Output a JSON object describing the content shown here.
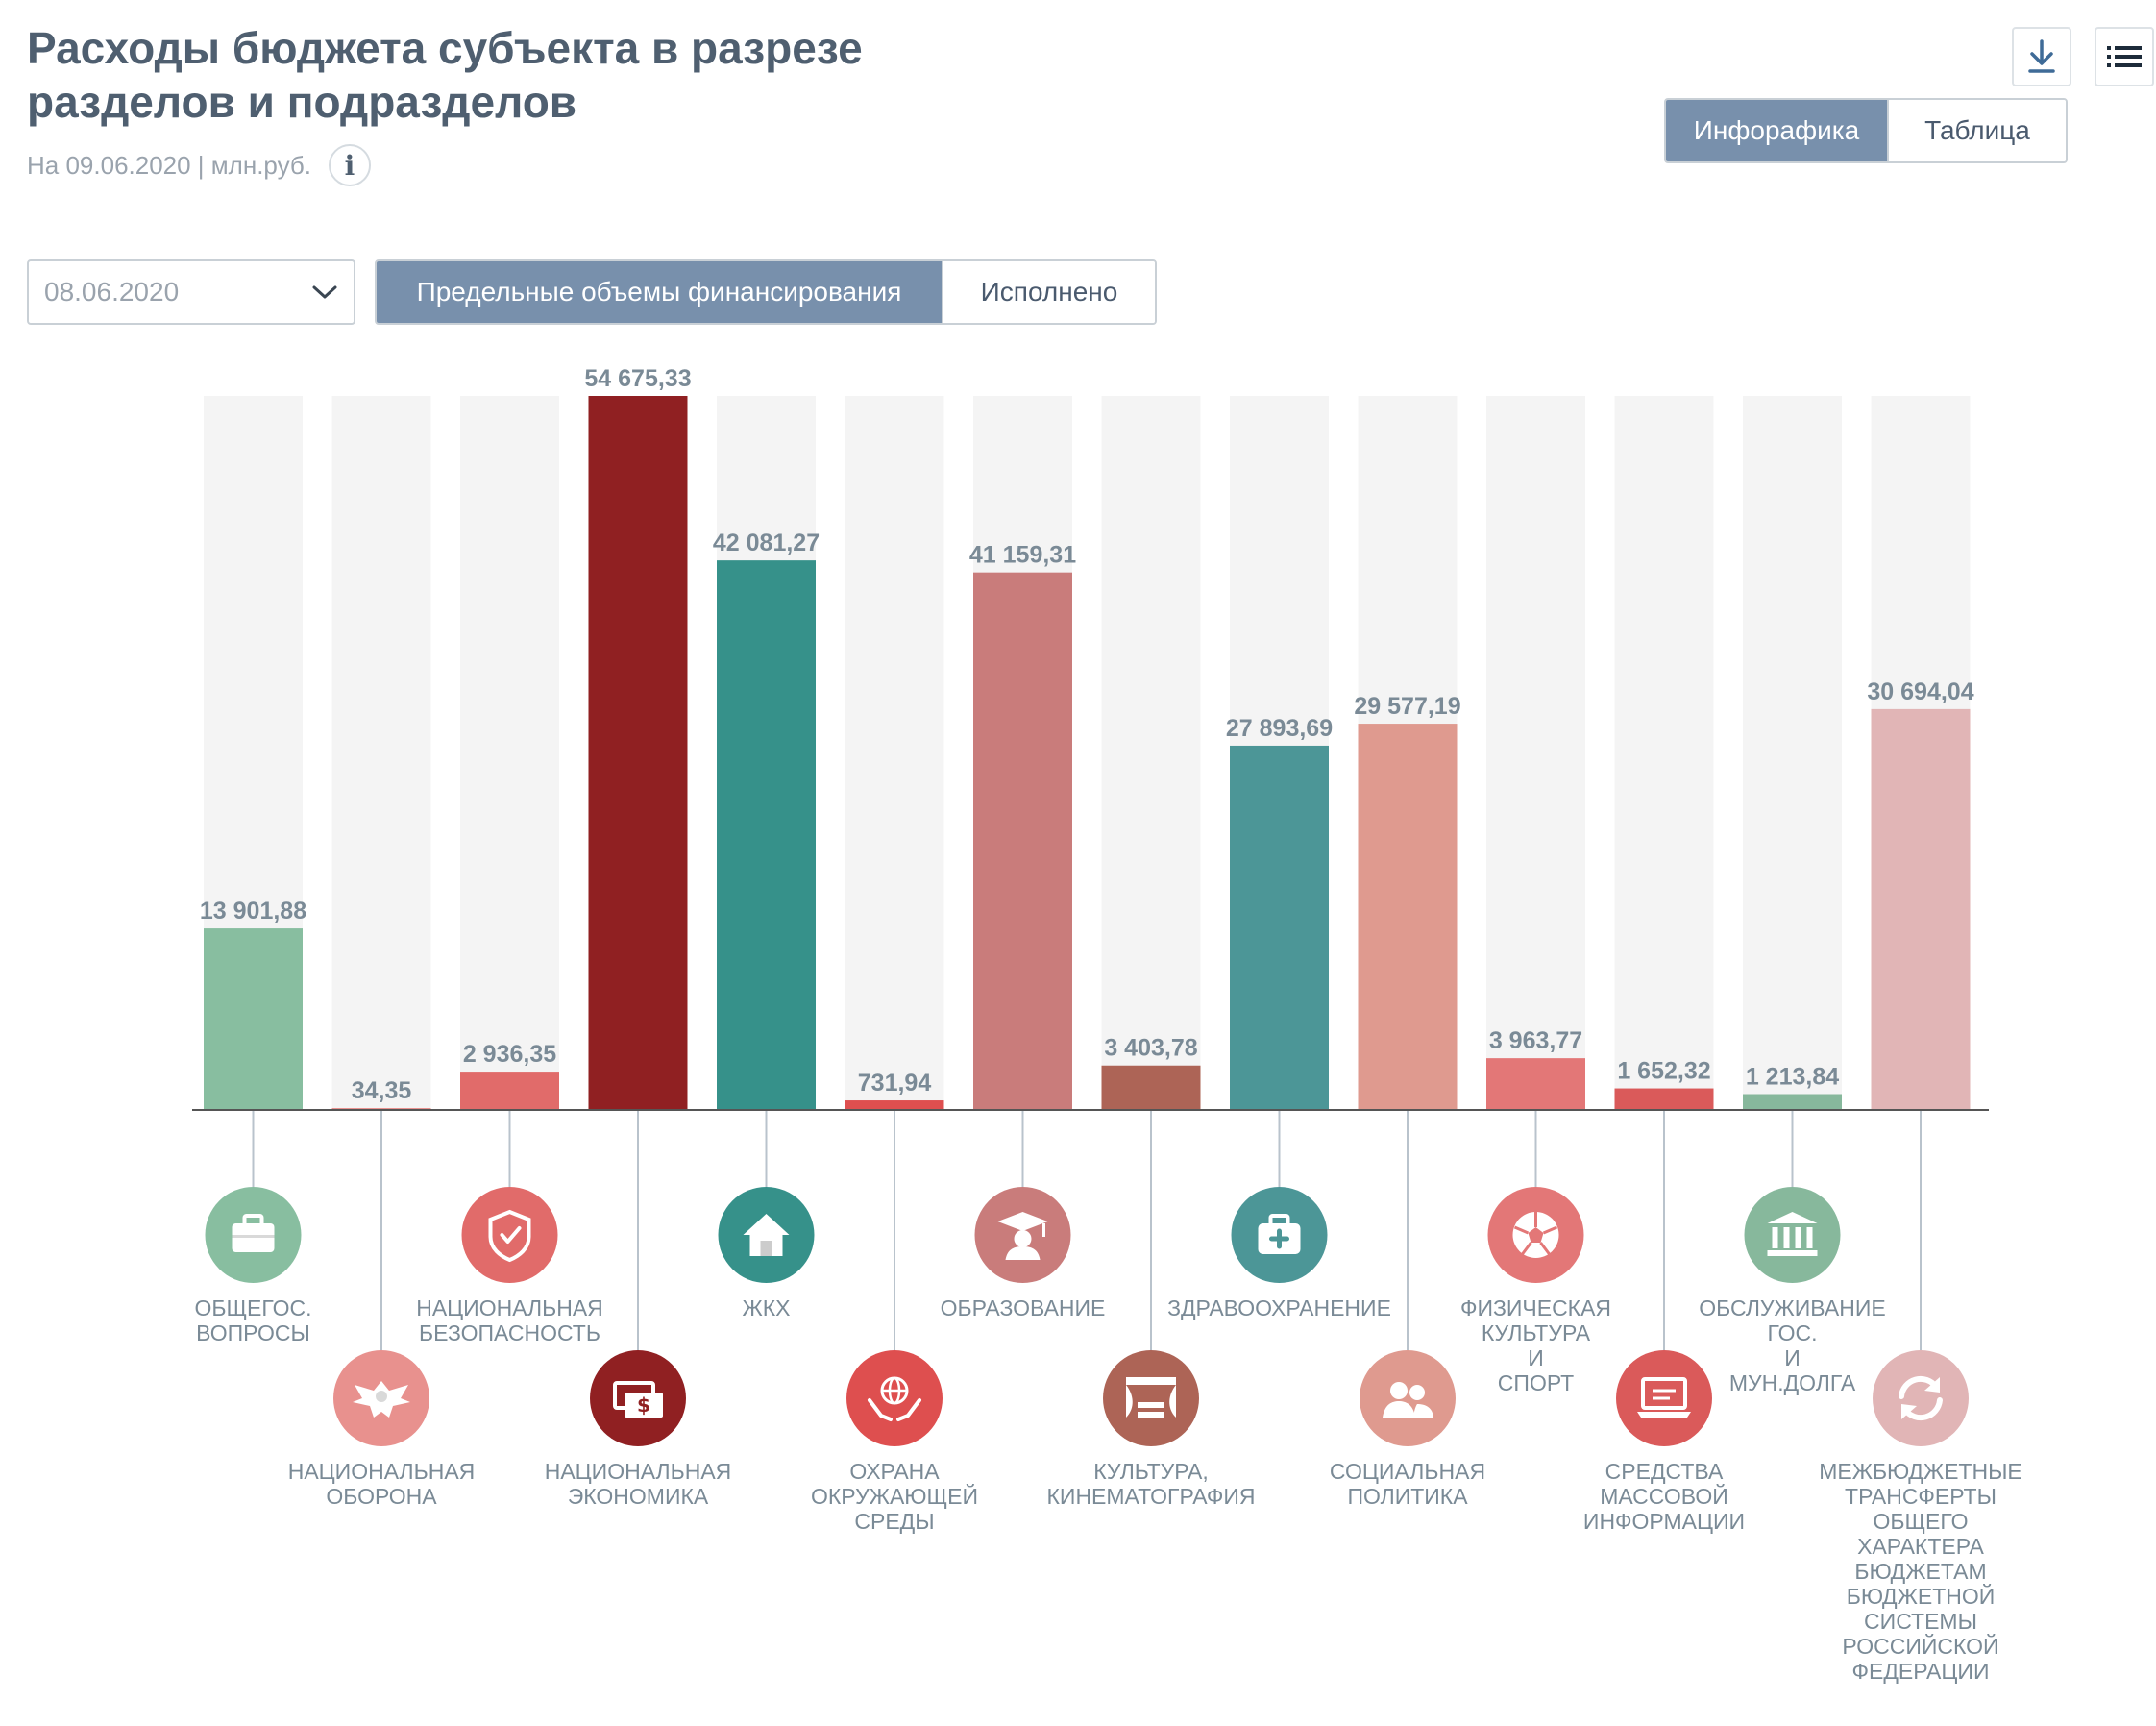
{
  "header": {
    "title_line1": "Расходы бюджета субъекта в разрезе",
    "title_line2": "разделов и подразделов",
    "subtitle": "На 09.06.2020 | млн.руб.",
    "info_glyph": "i"
  },
  "toolbar": {
    "download_icon": "download-icon",
    "menu_icon": "list-icon",
    "view_tabs": [
      "Инфорафика",
      "Таблица"
    ],
    "active_view": "Инфорафика"
  },
  "filters": {
    "date_value": "08.06.2020",
    "mode_tabs": [
      "Предельные объемы финансирования",
      "Исполнено"
    ],
    "active_mode": "Предельные объемы финансирования"
  },
  "colors": {
    "track": "#f4f4f4",
    "axis": "#555555",
    "value_label": "#7a8a96",
    "category_label": "#7a8a96",
    "connector": "#b9c3cc"
  },
  "chart_data": {
    "type": "bar",
    "unit": "млн.руб.",
    "ylim": [
      0,
      54675.33
    ],
    "categories": [
      "ОБЩЕГОС. ВОПРОСЫ",
      "НАЦИОНАЛЬНАЯ ОБОРОНА",
      "НАЦИОНАЛЬНАЯ БЕЗОПАСНОСТЬ",
      "НАЦИОНАЛЬНАЯ ЭКОНОМИКА",
      "ЖКХ",
      "ОХРАНА ОКРУЖАЮЩЕЙ СРЕДЫ",
      "ОБРАЗОВАНИЕ",
      "КУЛЬТУРА, КИНЕМАТОГРАФИЯ",
      "ЗДРАВООХРАНЕНИЕ",
      "СОЦИАЛЬНАЯ ПОЛИТИКА",
      "ФИЗИЧЕСКАЯ КУЛЬТУРА И СПОРТ",
      "СРЕДСТВА МАССОВОЙ ИНФОРМАЦИИ",
      "ОБСЛУЖИВАНИЕ ГОС. И МУН.ДОЛГА",
      "МЕЖБЮДЖЕТНЫЕ ТРАНСФЕРТЫ ОБЩЕГО ХАРАКТЕРА БЮДЖЕТАМ БЮДЖЕТНОЙ СИСТЕМЫ РОССИЙСКОЙ ФЕДЕРАЦИИ"
    ],
    "values": [
      13901.88,
      34.35,
      2936.35,
      54675.33,
      42081.27,
      731.94,
      41159.31,
      3403.78,
      27893.69,
      29577.19,
      3963.77,
      1652.32,
      1213.84,
      30694.04
    ],
    "value_labels": [
      "13 901,88",
      "34,35",
      "2 936,35",
      "54 675,33",
      "42 081,27",
      "731,94",
      "41 159,31",
      "3 403,78",
      "27 893,69",
      "29 577,19",
      "3 963,77",
      "1 652,32",
      "1 213,84",
      "30 694,04"
    ],
    "category_label_lines": [
      [
        "ОБЩЕГОС.",
        "ВОПРОСЫ"
      ],
      [
        "НАЦИОНАЛЬНАЯ",
        "ОБОРОНА"
      ],
      [
        "НАЦИОНАЛЬНАЯ",
        "БЕЗОПАСНОСТЬ"
      ],
      [
        "НАЦИОНАЛЬНАЯ",
        "ЭКОНОМИКА"
      ],
      [
        "ЖКХ"
      ],
      [
        "ОХРАНА",
        "ОКРУЖАЮЩЕЙ",
        "СРЕДЫ"
      ],
      [
        "ОБРАЗОВАНИЕ"
      ],
      [
        "КУЛЬТУРА,",
        "КИНЕМАТОГРАФИЯ"
      ],
      [
        "ЗДРАВООХРАНЕНИЕ"
      ],
      [
        "СОЦИАЛЬНАЯ",
        "ПОЛИТИКА"
      ],
      [
        "ФИЗИЧЕСКАЯ",
        "КУЛЬТУРА",
        "И",
        "СПОРТ"
      ],
      [
        "СРЕДСТВА",
        "МАССОВОЙ",
        "ИНФОРМАЦИИ"
      ],
      [
        "ОБСЛУЖИВАНИЕ",
        "ГОС.",
        "И",
        "МУН.ДОЛГА"
      ],
      [
        "МЕЖБЮДЖЕТНЫЕ",
        "ТРАНСФЕРТЫ",
        "ОБЩЕГО",
        "ХАРАКТЕРА",
        "БЮДЖЕТАМ",
        "БЮДЖЕТНОЙ",
        "СИСТЕМЫ",
        "РОССИЙСКОЙ",
        "ФЕДЕРАЦИИ"
      ]
    ],
    "colors": [
      "#88bea0",
      "#e8918e",
      "#e16b6a",
      "#902022",
      "#36918a",
      "#de4f4f",
      "#c97c7b",
      "#ad6456",
      "#4c9697",
      "#df9a8f",
      "#e37777",
      "#da5a5a",
      "#87b89c",
      "#e1b5b6"
    ],
    "icons": [
      "briefcase-icon",
      "eagle-emblem-icon",
      "shield-check-icon",
      "money-icon",
      "house-icon",
      "globe-hands-icon",
      "graduate-icon",
      "theater-icon",
      "first-aid-kit-icon",
      "people-icon",
      "soccer-ball-icon",
      "laptop-icon",
      "bank-icon",
      "refresh-arrows-icon"
    ],
    "grid": false,
    "legend": "none"
  }
}
